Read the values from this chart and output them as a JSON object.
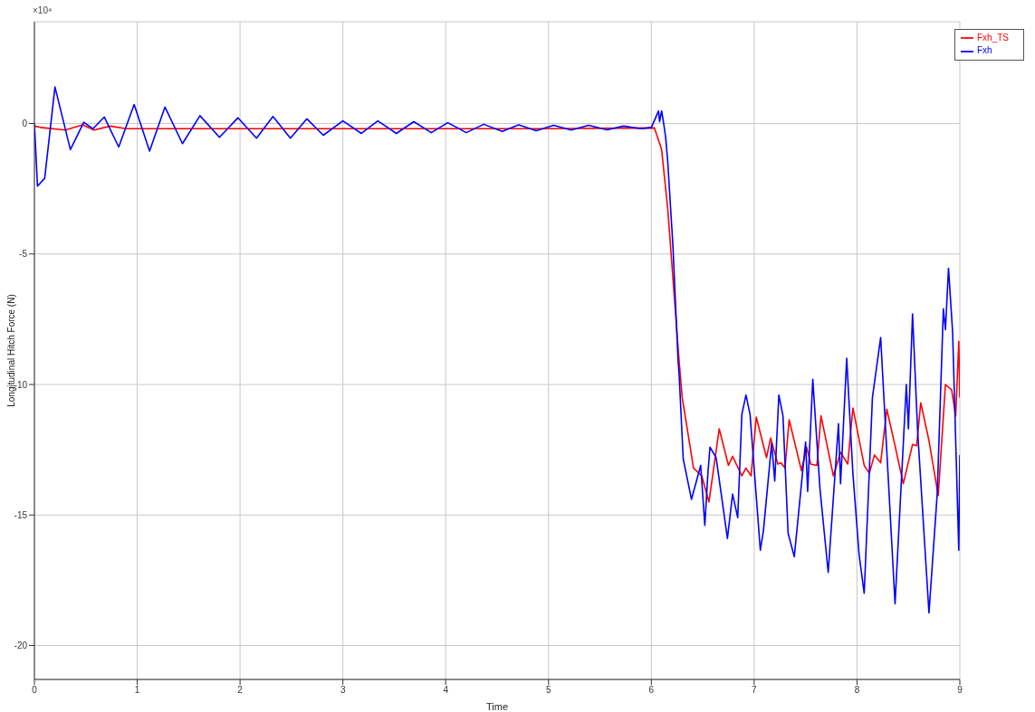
{
  "chart_data": {
    "type": "line",
    "xlabel": "Time",
    "ylabel": "Longitudinal Hitch Force (N)",
    "annotations": [
      "×10⁴"
    ],
    "xlim": [
      0,
      9
    ],
    "xticks": [
      0,
      1,
      2,
      3,
      4,
      5,
      6,
      7,
      8,
      9
    ],
    "ylim": [
      -21.3,
      3.9
    ],
    "yticks": [
      0,
      -5,
      -10,
      -15,
      -20
    ],
    "grid": true,
    "legend": "top right",
    "line_style": "solid",
    "marker": "none",
    "series": [
      {
        "name": "Fxh_TS",
        "color": "#ff0000",
        "x": [
          0,
          0.06,
          0.3,
          0.47,
          0.58,
          0.74,
          0.89,
          1.2,
          2,
          3,
          4,
          5,
          6.03,
          6.1,
          6.16,
          6.27,
          6.3,
          6.41,
          6.49,
          6.56,
          6.66,
          6.75,
          6.79,
          6.88,
          6.92,
          6.97,
          7.02,
          7.12,
          7.16,
          7.23,
          7.26,
          7.3,
          7.34,
          7.46,
          7.51,
          7.55,
          7.61,
          7.65,
          7.77,
          7.84,
          7.91,
          7.96,
          8.07,
          8.12,
          8.17,
          8.23,
          8.29,
          8.37,
          8.45,
          8.54,
          8.58,
          8.62,
          8.7,
          8.79,
          8.86,
          8.92,
          8.96,
          8.99,
          9
        ],
        "values": [
          -0.1,
          -0.15,
          -0.25,
          -0.05,
          -0.25,
          -0.1,
          -0.2,
          -0.2,
          -0.2,
          -0.2,
          -0.2,
          -0.2,
          -0.17,
          -1.0,
          -3.3,
          -9.1,
          -10.5,
          -13.2,
          -13.5,
          -14.5,
          -11.7,
          -13.1,
          -12.75,
          -13.5,
          -13.2,
          -13.5,
          -11.25,
          -12.8,
          -12.05,
          -13.05,
          -13.0,
          -13.2,
          -11.35,
          -13.3,
          -12.4,
          -13.05,
          -13.1,
          -11.2,
          -13.5,
          -12.6,
          -13.05,
          -10.9,
          -13.1,
          -13.4,
          -12.7,
          -13.0,
          -10.95,
          -12.35,
          -13.8,
          -12.3,
          -12.35,
          -10.7,
          -12.15,
          -14.25,
          -10.0,
          -10.2,
          -11.2,
          -8.35,
          -10.5
        ]
      },
      {
        "name": "Fxh",
        "color": "#0000ff",
        "x": [
          0,
          0.03,
          0.1,
          0.2,
          0.35,
          0.48,
          0.57,
          0.68,
          0.82,
          0.97,
          1.12,
          1.27,
          1.44,
          1.61,
          1.8,
          1.98,
          2.16,
          2.32,
          2.49,
          2.65,
          2.81,
          3.0,
          3.18,
          3.34,
          3.52,
          3.69,
          3.86,
          4.02,
          4.2,
          4.37,
          4.55,
          4.71,
          4.88,
          5.05,
          5.22,
          5.39,
          5.57,
          5.73,
          5.9,
          6.0,
          6.07,
          6.08,
          6.1,
          6.12,
          6.14,
          6.16,
          6.21,
          6.26,
          6.27,
          6.31,
          6.39,
          6.48,
          6.52,
          6.55,
          6.57,
          6.63,
          6.74,
          6.79,
          6.84,
          6.88,
          6.92,
          6.96,
          7.06,
          7.09,
          7.17,
          7.2,
          7.24,
          7.28,
          7.33,
          7.39,
          7.5,
          7.52,
          7.57,
          7.64,
          7.72,
          7.82,
          7.84,
          7.9,
          7.92,
          7.96,
          8.02,
          8.07,
          8.15,
          8.23,
          8.37,
          8.48,
          8.5,
          8.54,
          8.59,
          8.7,
          8.78,
          8.84,
          8.86,
          8.89,
          8.93,
          8.99,
          9.0
        ],
        "values": [
          0,
          -2.4,
          -2.1,
          1.4,
          -1.0,
          0.05,
          -0.2,
          0.25,
          -0.9,
          0.73,
          -1.06,
          0.63,
          -0.77,
          0.3,
          -0.53,
          0.22,
          -0.56,
          0.27,
          -0.56,
          0.18,
          -0.45,
          0.1,
          -0.38,
          0.1,
          -0.38,
          0.07,
          -0.35,
          0.03,
          -0.35,
          -0.03,
          -0.3,
          -0.05,
          -0.28,
          -0.07,
          -0.25,
          -0.07,
          -0.24,
          -0.1,
          -0.2,
          -0.15,
          0.48,
          0.07,
          0.48,
          0,
          -0.56,
          -1.5,
          -4.7,
          -9.1,
          -9.6,
          -12.85,
          -14.4,
          -13.1,
          -15.4,
          -13.4,
          -12.4,
          -12.8,
          -15.9,
          -14.2,
          -15.1,
          -11.15,
          -10.4,
          -11.15,
          -16.35,
          -15.6,
          -12.25,
          -13.7,
          -10.4,
          -11.2,
          -15.7,
          -16.6,
          -12.2,
          -14.1,
          -9.8,
          -14.0,
          -17.2,
          -11.5,
          -13.8,
          -9.0,
          -10.5,
          -13.4,
          -16.5,
          -18.0,
          -10.5,
          -8.2,
          -18.4,
          -10.0,
          -11.7,
          -7.3,
          -11.8,
          -18.75,
          -14.2,
          -7.1,
          -7.9,
          -5.55,
          -8.0,
          -16.35,
          -12.7
        ]
      }
    ]
  }
}
